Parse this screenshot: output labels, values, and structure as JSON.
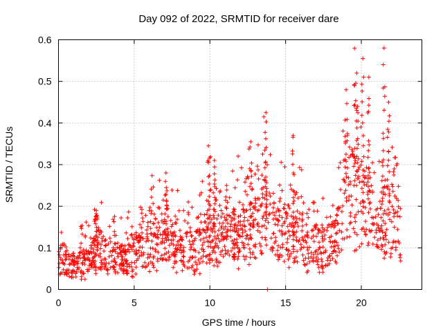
{
  "chart_data": {
    "type": "scatter",
    "title": "Day 092 of 2022, SRMTID for receiver dare",
    "xlabel": "GPS time / hours",
    "ylabel": "SRMTID / TECUs",
    "xlim": [
      0,
      24
    ],
    "ylim": [
      0,
      0.6
    ],
    "x_ticks": [
      0,
      5,
      10,
      15,
      20
    ],
    "y_ticks": [
      0,
      0.1,
      0.2,
      0.3,
      0.4,
      0.5,
      0.6
    ],
    "x_tick_labels": [
      "0",
      "5",
      "10",
      "15",
      "20"
    ],
    "y_tick_labels": [
      "0",
      "0.1",
      "0.2",
      "0.3",
      "0.4",
      "0.5",
      "0.6"
    ],
    "grid": true,
    "marker": "plus",
    "color": "#ff0000",
    "trend": [
      {
        "x": 0.0,
        "y": 0.07
      },
      {
        "x": 1.0,
        "y": 0.055
      },
      {
        "x": 2.0,
        "y": 0.07
      },
      {
        "x": 2.6,
        "y": 0.1
      },
      {
        "x": 3.5,
        "y": 0.075
      },
      {
        "x": 4.5,
        "y": 0.07
      },
      {
        "x": 5.3,
        "y": 0.1
      },
      {
        "x": 6.0,
        "y": 0.11
      },
      {
        "x": 7.0,
        "y": 0.125
      },
      {
        "x": 8.0,
        "y": 0.1
      },
      {
        "x": 9.0,
        "y": 0.09
      },
      {
        "x": 10.0,
        "y": 0.13
      },
      {
        "x": 11.0,
        "y": 0.12
      },
      {
        "x": 12.0,
        "y": 0.13
      },
      {
        "x": 13.0,
        "y": 0.15
      },
      {
        "x": 13.6,
        "y": 0.17
      },
      {
        "x": 14.5,
        "y": 0.13
      },
      {
        "x": 15.5,
        "y": 0.14
      },
      {
        "x": 16.5,
        "y": 0.11
      },
      {
        "x": 17.5,
        "y": 0.1
      },
      {
        "x": 18.3,
        "y": 0.12
      },
      {
        "x": 19.0,
        "y": 0.22
      },
      {
        "x": 19.6,
        "y": 0.26
      },
      {
        "x": 20.2,
        "y": 0.2
      },
      {
        "x": 21.0,
        "y": 0.16
      },
      {
        "x": 22.0,
        "y": 0.17
      },
      {
        "x": 22.6,
        "y": 0.15
      }
    ],
    "spikes": [
      {
        "x": 2.5,
        "y": 0.19
      },
      {
        "x": 7.1,
        "y": 0.28
      },
      {
        "x": 9.9,
        "y": 0.345
      },
      {
        "x": 10.3,
        "y": 0.31
      },
      {
        "x": 11.1,
        "y": 0.25
      },
      {
        "x": 12.7,
        "y": 0.355
      },
      {
        "x": 13.7,
        "y": 0.425
      },
      {
        "x": 15.5,
        "y": 0.37
      },
      {
        "x": 19.0,
        "y": 0.48
      },
      {
        "x": 19.7,
        "y": 0.52
      },
      {
        "x": 20.1,
        "y": 0.555
      },
      {
        "x": 20.5,
        "y": 0.51
      },
      {
        "x": 21.5,
        "y": 0.58
      },
      {
        "x": 21.8,
        "y": 0.45
      }
    ],
    "low_points": [
      {
        "x": 13.8,
        "y": 0.0
      }
    ]
  }
}
